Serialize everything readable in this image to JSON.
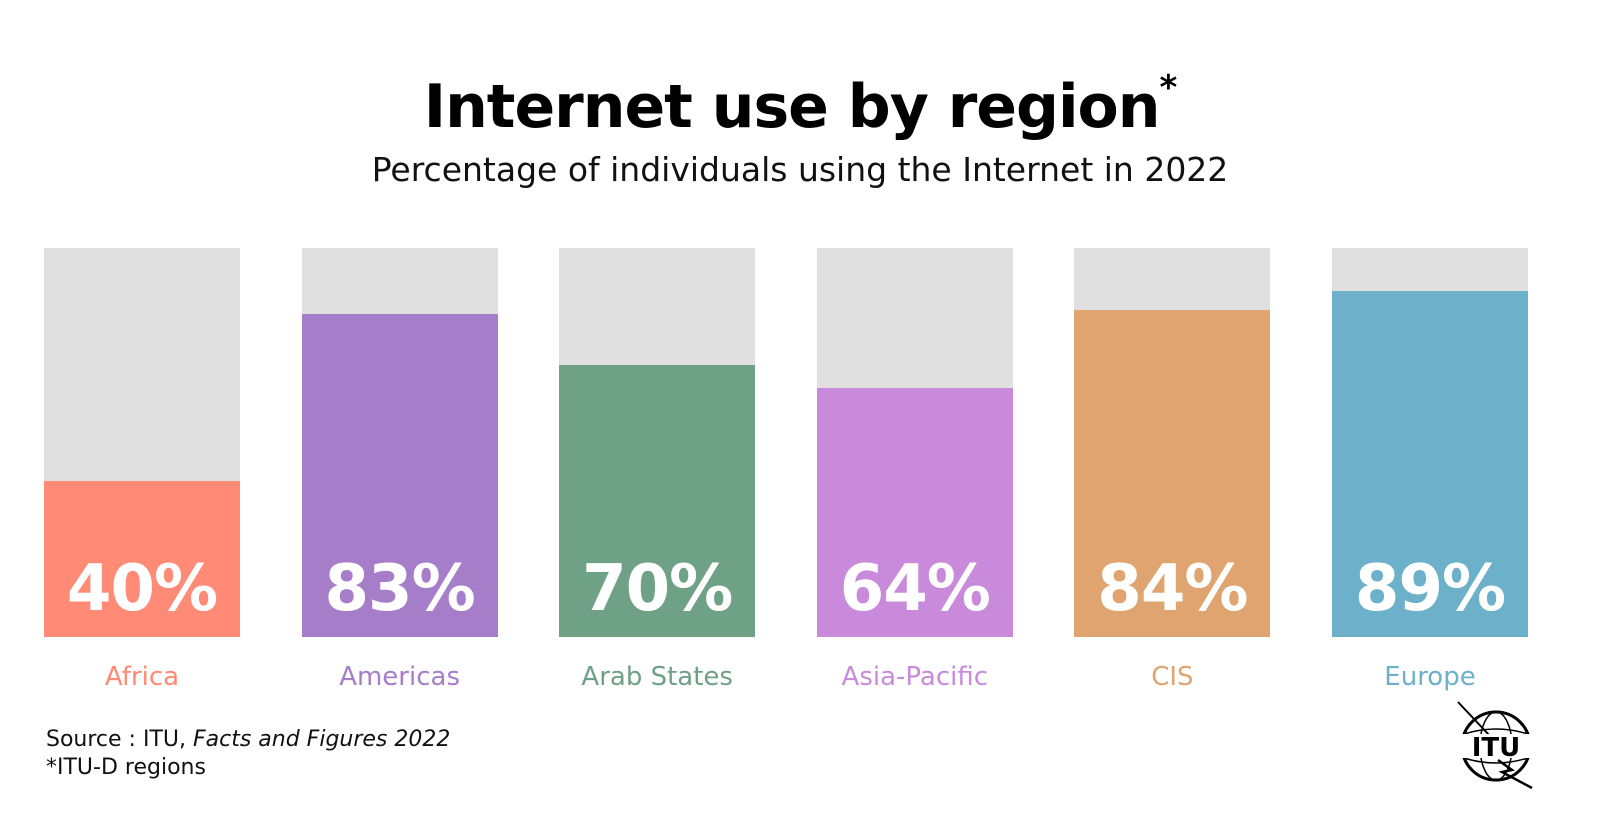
{
  "chart_data": {
    "type": "bar",
    "title": "Internet use by region",
    "title_marker": "*",
    "subtitle": "Percentage of individuals using the Internet in 2022",
    "categories": [
      "Africa",
      "Americas",
      "Arab States",
      "Asia-Pacific",
      "CIS",
      "Europe"
    ],
    "values": [
      40,
      83,
      70,
      64,
      84,
      89
    ],
    "value_labels": [
      "40%",
      "83%",
      "70%",
      "64%",
      "84%",
      "89%"
    ],
    "colors": [
      "#ff8a75",
      "#a67dc8",
      "#6fa187",
      "#c98adb",
      "#dfa46f",
      "#6db0c9"
    ],
    "track_color": "#e0e0e0",
    "ylim": [
      0,
      100
    ],
    "grid": false,
    "xlabel": "",
    "ylabel": ""
  },
  "footer": {
    "source_prefix": "Source : ITU, ",
    "source_title": "Facts and Figures 2022",
    "note": "*ITU-D regions",
    "logo_text": "ITU"
  }
}
